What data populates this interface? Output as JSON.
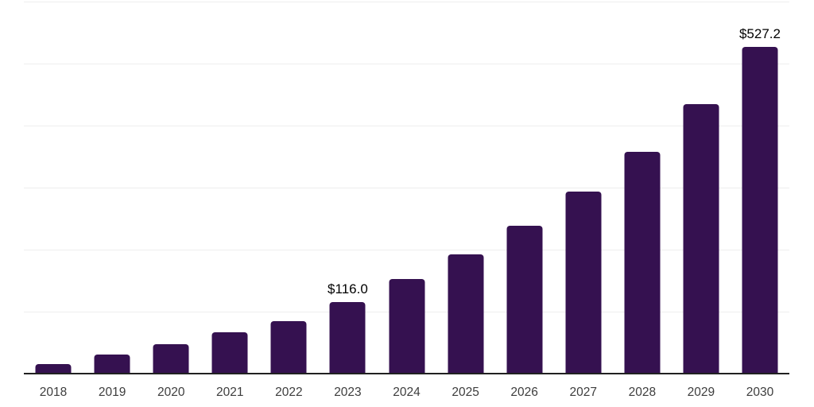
{
  "chart_data": {
    "type": "bar",
    "title": "",
    "xlabel": "",
    "ylabel": "",
    "categories": [
      "2018",
      "2019",
      "2020",
      "2021",
      "2022",
      "2023",
      "2024",
      "2025",
      "2026",
      "2027",
      "2028",
      "2029",
      "2030"
    ],
    "values": [
      15,
      31,
      47,
      67,
      84,
      116.0,
      152,
      192,
      239,
      293,
      358,
      435,
      527.2
    ],
    "value_labels": [
      null,
      null,
      null,
      null,
      null,
      "$116.0",
      null,
      null,
      null,
      null,
      null,
      null,
      "$527.2"
    ],
    "ylim": [
      0,
      600
    ],
    "gridline_interval": 100,
    "grid": true,
    "legend": false,
    "y_axis_tick_labels_visible": false,
    "colors": {
      "bar": "#351150",
      "gridline": "#eeeeee",
      "axis_line": "#212121",
      "x_tick_label": "#3d3d3d",
      "value_label": "#000000",
      "background": "#ffffff"
    }
  }
}
